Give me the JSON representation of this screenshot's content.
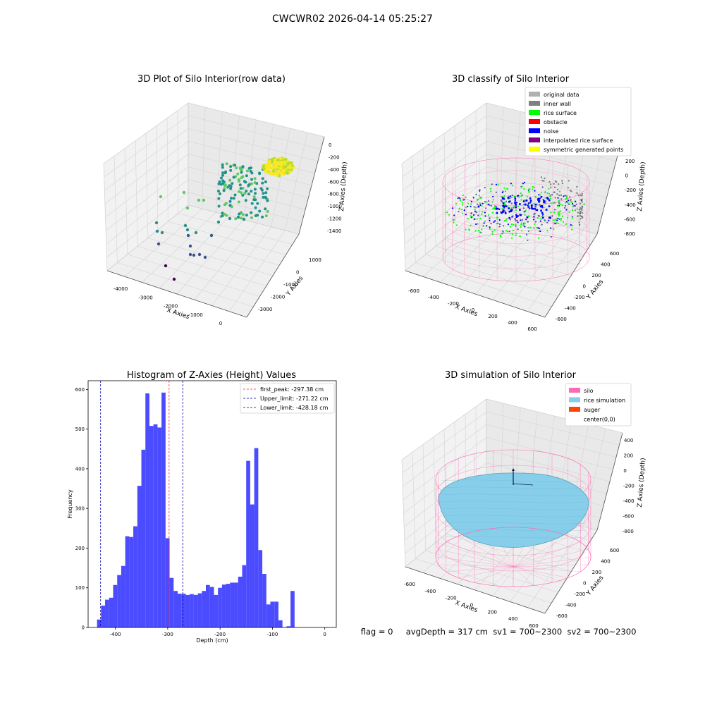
{
  "figure": {
    "suptitle": "CWCWR02 2026-04-14 05:25:27",
    "status_line": "flag = 0     avgDepth = 317 cm  sv1 = 700~2300  sv2 = 700~2300"
  },
  "colors": {
    "hist_bar": "#4b4bff",
    "first_peak": "#ff2a2a",
    "limit": "#0000aa",
    "pane_left": "#f2f2f2",
    "pane_right": "#e9e9e9",
    "pane_floor": "#efefef",
    "grid": "#d4d4d4",
    "silo": "#ff69b4",
    "rice": "#87ceeb",
    "auger": "#ff4500",
    "rice_surface": "#00ff00",
    "noise": "#0000ff"
  },
  "chart_data": [
    {
      "type": "scatter",
      "title": "3D Plot of Silo Interior(row data)",
      "xlabel": "X Axies",
      "ylabel": "Y Axies",
      "zlabel": "Z Axies (Depth)",
      "xticks": [
        "-4000",
        "-3000",
        "-2000",
        "-1000",
        "0"
      ],
      "yticks": [
        "-3000",
        "-2000",
        "-1000",
        "0",
        "1000"
      ],
      "zticks": [
        "0",
        "-200",
        "-400",
        "-600",
        "-800",
        "-1000",
        "-1200",
        "-1400"
      ],
      "colormap": "viridis"
    },
    {
      "type": "scatter",
      "title": "3D classify of Silo Interior",
      "xlabel": "X Axies",
      "ylabel": "Y Axies",
      "zlabel": "Z Axies (Depth)",
      "xticks": [
        "-600",
        "-400",
        "-200",
        "0",
        "200",
        "400",
        "600"
      ],
      "yticks": [
        "-600",
        "-400",
        "-200",
        "0",
        "200",
        "400",
        "600"
      ],
      "zticks": [
        "200",
        "0",
        "-200",
        "-400",
        "-600",
        "-800"
      ],
      "legend": [
        {
          "label": "original data",
          "color": "#b0b0b0"
        },
        {
          "label": "inner wall",
          "color": "#808080"
        },
        {
          "label": "rice surface",
          "color": "#00ff00"
        },
        {
          "label": "obstacle",
          "color": "#ff0000"
        },
        {
          "label": "noise",
          "color": "#0000ff"
        },
        {
          "label": "interpolated rice surface",
          "color": "#800080"
        },
        {
          "label": "symmetric generated points",
          "color": "#ffff00"
        }
      ],
      "legend_position": "top-right"
    },
    {
      "type": "bar",
      "title": "Histogram of Z-Axies (Height) Values",
      "xlabel": "Depth (cm)",
      "ylabel": "Frequency",
      "xlim": [
        -452,
        22
      ],
      "ylim": [
        0,
        622
      ],
      "xticks": [
        -400,
        -300,
        -200,
        -100,
        0
      ],
      "yticks": [
        0,
        100,
        200,
        300,
        400,
        500,
        600
      ],
      "bin_start": -435,
      "bin_width": 7.7,
      "values": [
        20,
        55,
        70,
        75,
        107,
        132,
        155,
        230,
        228,
        255,
        357,
        448,
        590,
        508,
        512,
        504,
        592,
        225,
        125,
        92,
        85,
        85,
        82,
        84,
        82,
        86,
        92,
        107,
        102,
        82,
        100,
        108,
        110,
        113,
        113,
        128,
        157,
        420,
        310,
        452,
        195,
        135,
        58,
        65,
        65,
        18,
        0,
        3,
        92
      ],
      "vlines": [
        {
          "label": "first_peak: -297.38 cm",
          "x": -297.38,
          "color": "#ff2a2a"
        },
        {
          "label": "Upper_limit: -271.22 cm",
          "x": -271.22,
          "color": "#0000aa"
        },
        {
          "label": "Lower_limit: -428.18 cm",
          "x": -428.18,
          "color": "#0000aa"
        }
      ],
      "legend_position": "top-right"
    },
    {
      "type": "scatter",
      "title": "3D simulation of Silo Interior",
      "xlabel": "X Axies",
      "ylabel": "Y Axies",
      "zlabel": "Z Axies (Depth)",
      "xticks": [
        "-600",
        "-400",
        "-200",
        "0",
        "200",
        "400",
        "600"
      ],
      "yticks": [
        "-600",
        "-400",
        "-200",
        "0",
        "200",
        "400",
        "600"
      ],
      "zticks": [
        "400",
        "200",
        "0",
        "-200",
        "-400",
        "-600",
        "-800"
      ],
      "legend": [
        {
          "label": "silo",
          "color": "#ff69b4"
        },
        {
          "label": "rice simulation",
          "color": "#87ceeb"
        },
        {
          "label": "auger",
          "color": "#ff4500"
        },
        {
          "label": "center(0,0)",
          "color": ""
        }
      ],
      "legend_position": "top-right"
    }
  ]
}
